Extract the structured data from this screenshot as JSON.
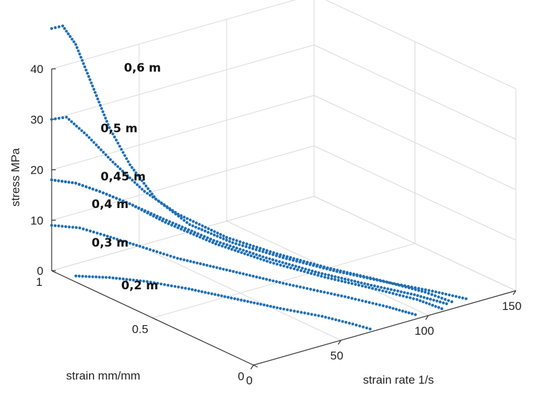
{
  "chart_data": {
    "type": "scatter",
    "view": "3d",
    "xlabel": "strain rate 1/s",
    "ylabel": "strain mm/mm",
    "zlabel": "stress MPa",
    "xlim": [
      0,
      150
    ],
    "ylim": [
      0,
      1
    ],
    "zlim": [
      0,
      40
    ],
    "xticks": [
      "0",
      "50",
      "100",
      "150"
    ],
    "yticks": [
      "0",
      "0.5",
      "1"
    ],
    "zticks": [
      "0",
      "10",
      "20",
      "30",
      "40"
    ],
    "grid": true,
    "marker_color": "#1f6fb5",
    "series": [
      {
        "name": "0,2 m",
        "points": [
          [
            0,
            0.88,
            1.2
          ],
          [
            10,
            0.8,
            1.4
          ],
          [
            20,
            0.7,
            1.5
          ],
          [
            30,
            0.58,
            1.3
          ],
          [
            40,
            0.44,
            1.0
          ],
          [
            50,
            0.3,
            0.7
          ],
          [
            60,
            0.18,
            0.4
          ],
          [
            66,
            0.08,
            0.15
          ],
          [
            69,
            0.02,
            0.0
          ]
        ]
      },
      {
        "name": "0,3 m",
        "points": [
          [
            0,
            1.0,
            9
          ],
          [
            8,
            0.93,
            9
          ],
          [
            15,
            0.87,
            8
          ],
          [
            25,
            0.78,
            6.5
          ],
          [
            35,
            0.68,
            5
          ],
          [
            50,
            0.55,
            3.5
          ],
          [
            65,
            0.4,
            2.2
          ],
          [
            80,
            0.24,
            1.2
          ],
          [
            90,
            0.12,
            0.5
          ],
          [
            96,
            0.03,
            0.0
          ]
        ]
      },
      {
        "name": "0,4 m",
        "points": [
          [
            0,
            1.0,
            18
          ],
          [
            8,
            0.95,
            17.5
          ],
          [
            16,
            0.9,
            16
          ],
          [
            25,
            0.83,
            14
          ],
          [
            35,
            0.74,
            11
          ],
          [
            50,
            0.62,
            7.5
          ],
          [
            65,
            0.48,
            5
          ],
          [
            80,
            0.34,
            3.2
          ],
          [
            95,
            0.2,
            1.8
          ],
          [
            105,
            0.1,
            0.8
          ],
          [
            110,
            0.02,
            0.0
          ]
        ]
      },
      {
        "name": "0,45 m",
        "points": [
          [
            0,
            1.0,
            18
          ],
          [
            8,
            0.95,
            17.5
          ],
          [
            16,
            0.9,
            16
          ],
          [
            25,
            0.83,
            14
          ],
          [
            35,
            0.75,
            11.5
          ],
          [
            50,
            0.63,
            8
          ],
          [
            65,
            0.5,
            5.5
          ],
          [
            80,
            0.37,
            3.5
          ],
          [
            95,
            0.24,
            2
          ],
          [
            107,
            0.13,
            1
          ],
          [
            115,
            0.04,
            0.1
          ]
        ]
      },
      {
        "name": "0,5 m",
        "points": [
          [
            0,
            1.0,
            30
          ],
          [
            5,
            0.97,
            30.5
          ],
          [
            12,
            0.93,
            27
          ],
          [
            20,
            0.87,
            22
          ],
          [
            30,
            0.8,
            16.5
          ],
          [
            40,
            0.72,
            12.5
          ],
          [
            55,
            0.61,
            8.5
          ],
          [
            70,
            0.49,
            6
          ],
          [
            85,
            0.37,
            4
          ],
          [
            100,
            0.24,
            2.5
          ],
          [
            112,
            0.12,
            1.2
          ],
          [
            118,
            0.04,
            0.2
          ]
        ]
      },
      {
        "name": "0,6 m",
        "points": [
          [
            0,
            1.0,
            48
          ],
          [
            4,
            0.98,
            48.5
          ],
          [
            8,
            0.95,
            45
          ],
          [
            13,
            0.91,
            37
          ],
          [
            18,
            0.87,
            29
          ],
          [
            24,
            0.82,
            22
          ],
          [
            32,
            0.76,
            15.5
          ],
          [
            42,
            0.68,
            11
          ],
          [
            55,
            0.58,
            8
          ],
          [
            70,
            0.46,
            5.8
          ],
          [
            85,
            0.34,
            4
          ],
          [
            100,
            0.22,
            2.6
          ],
          [
            115,
            0.11,
            1.3
          ],
          [
            125,
            0.03,
            0.3
          ]
        ]
      }
    ]
  }
}
